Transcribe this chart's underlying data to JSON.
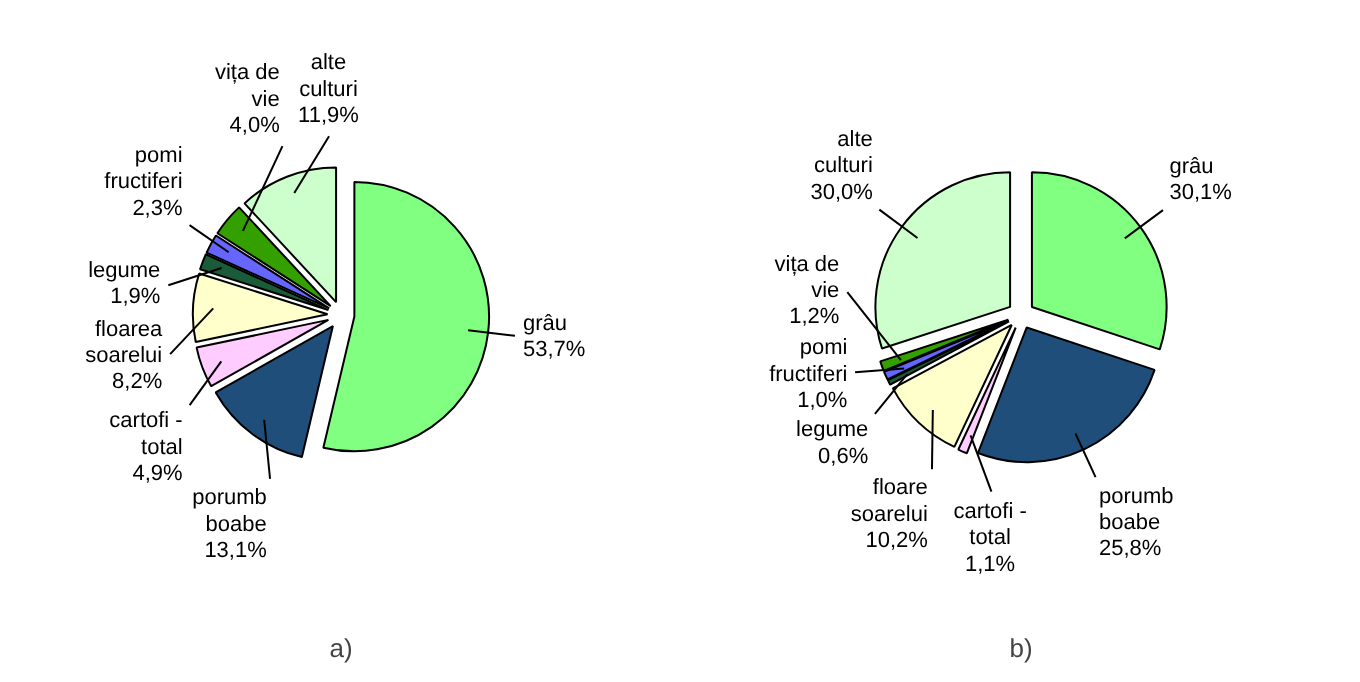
{
  "chart_data": [
    {
      "type": "pie",
      "title": "a)",
      "categories": [
        "grâu",
        "porumb boabe",
        "cartofi - total",
        "floarea soarelui",
        "legume",
        "pomi fructiferi",
        "vița de vie",
        "alte culturi"
      ],
      "values": [
        53.7,
        13.1,
        4.9,
        8.2,
        1.9,
        2.3,
        4.0,
        11.9
      ],
      "value_labels": [
        "53,7%",
        "13,1%",
        "4,9%",
        "8,2%",
        "1,9%",
        "2,3%",
        "4,0%",
        "11,9%"
      ],
      "colors": [
        "#80ff80",
        "#1f4e7a",
        "#ffccff",
        "#ffffcc",
        "#1a5c3a",
        "#6666ff",
        "#33a000",
        "#ccffcc"
      ]
    },
    {
      "type": "pie",
      "title": "b)",
      "categories": [
        "grâu",
        "porumb boabe",
        "cartofi - total",
        "floare soarelui",
        "legume",
        "pomi fructiferi",
        "vița de vie",
        "alte culturi"
      ],
      "values": [
        30.1,
        25.8,
        1.1,
        10.2,
        0.6,
        1.0,
        1.2,
        30.0
      ],
      "value_labels": [
        "30,1%",
        "25,8%",
        "1,1%",
        "10,2%",
        "0,6%",
        "1,0%",
        "1,2%",
        "30,0%"
      ],
      "colors": [
        "#80ff80",
        "#1f4e7a",
        "#ffccff",
        "#ffffcc",
        "#1a5c3a",
        "#6666ff",
        "#33a000",
        "#ccffcc"
      ]
    }
  ]
}
